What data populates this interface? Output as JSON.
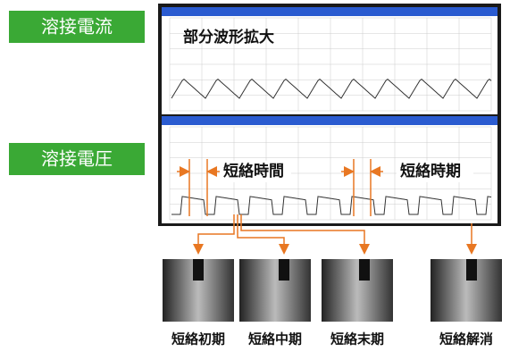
{
  "labels": {
    "current": "溶接電流",
    "voltage": "溶接電圧"
  },
  "zoom_note": "部分波形拡大",
  "annotations": {
    "short_time_1": "短絡時間",
    "short_time_2": "短絡時期"
  },
  "photos": [
    {
      "caption": "短絡初期"
    },
    {
      "caption": "短絡中期"
    },
    {
      "caption": "短絡末期"
    },
    {
      "caption": "短絡解消"
    }
  ]
}
